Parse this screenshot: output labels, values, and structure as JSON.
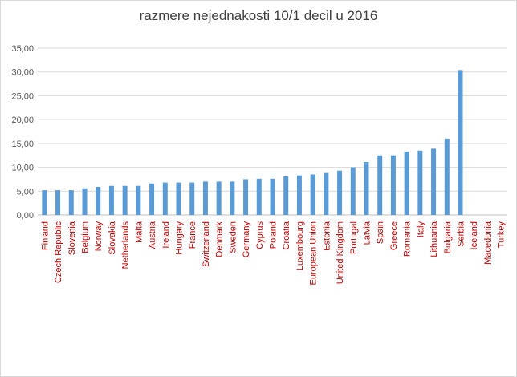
{
  "chart_data": {
    "type": "bar",
    "title": "razmere nejednakosti 10/1 decil u 2016",
    "xlabel": "",
    "ylabel": "",
    "ylim": [
      0,
      35
    ],
    "yticks": [
      "0,00",
      "5,00",
      "10,00",
      "15,00",
      "20,00",
      "25,00",
      "30,00",
      "35,00"
    ],
    "grid": "horizontal",
    "legend": "none",
    "bar_color": "#5b9bd5",
    "category_label_color": "#c00000",
    "categories": [
      "Finland",
      "Czech Republic",
      "Slovenia",
      "Belgium",
      "Norway",
      "Slovakia",
      "Netherlands",
      "Malta",
      "Austria",
      "Ireland",
      "Hungary",
      "France",
      "Switzerland",
      "Denmark",
      "Sweden",
      "Germany",
      "Cyprus",
      "Poland",
      "Croatia",
      "Luxembourg",
      "European Union",
      "Estonia",
      "United Kingdom",
      "Portugal",
      "Latvia",
      "Spain",
      "Greece",
      "Romania",
      "Italy",
      "Lithuania",
      "Bulgaria",
      "Serbia",
      "Iceland",
      "Macedonia",
      "Turkey"
    ],
    "values": [
      5.2,
      5.2,
      5.2,
      5.6,
      5.9,
      6.1,
      6.1,
      6.1,
      6.6,
      6.8,
      6.8,
      6.8,
      7.0,
      7.0,
      7.0,
      7.5,
      7.6,
      7.6,
      8.1,
      8.3,
      8.5,
      8.8,
      9.3,
      10.0,
      11.1,
      12.5,
      12.5,
      13.3,
      13.5,
      13.9,
      16.0,
      30.4,
      null,
      null,
      null
    ]
  }
}
